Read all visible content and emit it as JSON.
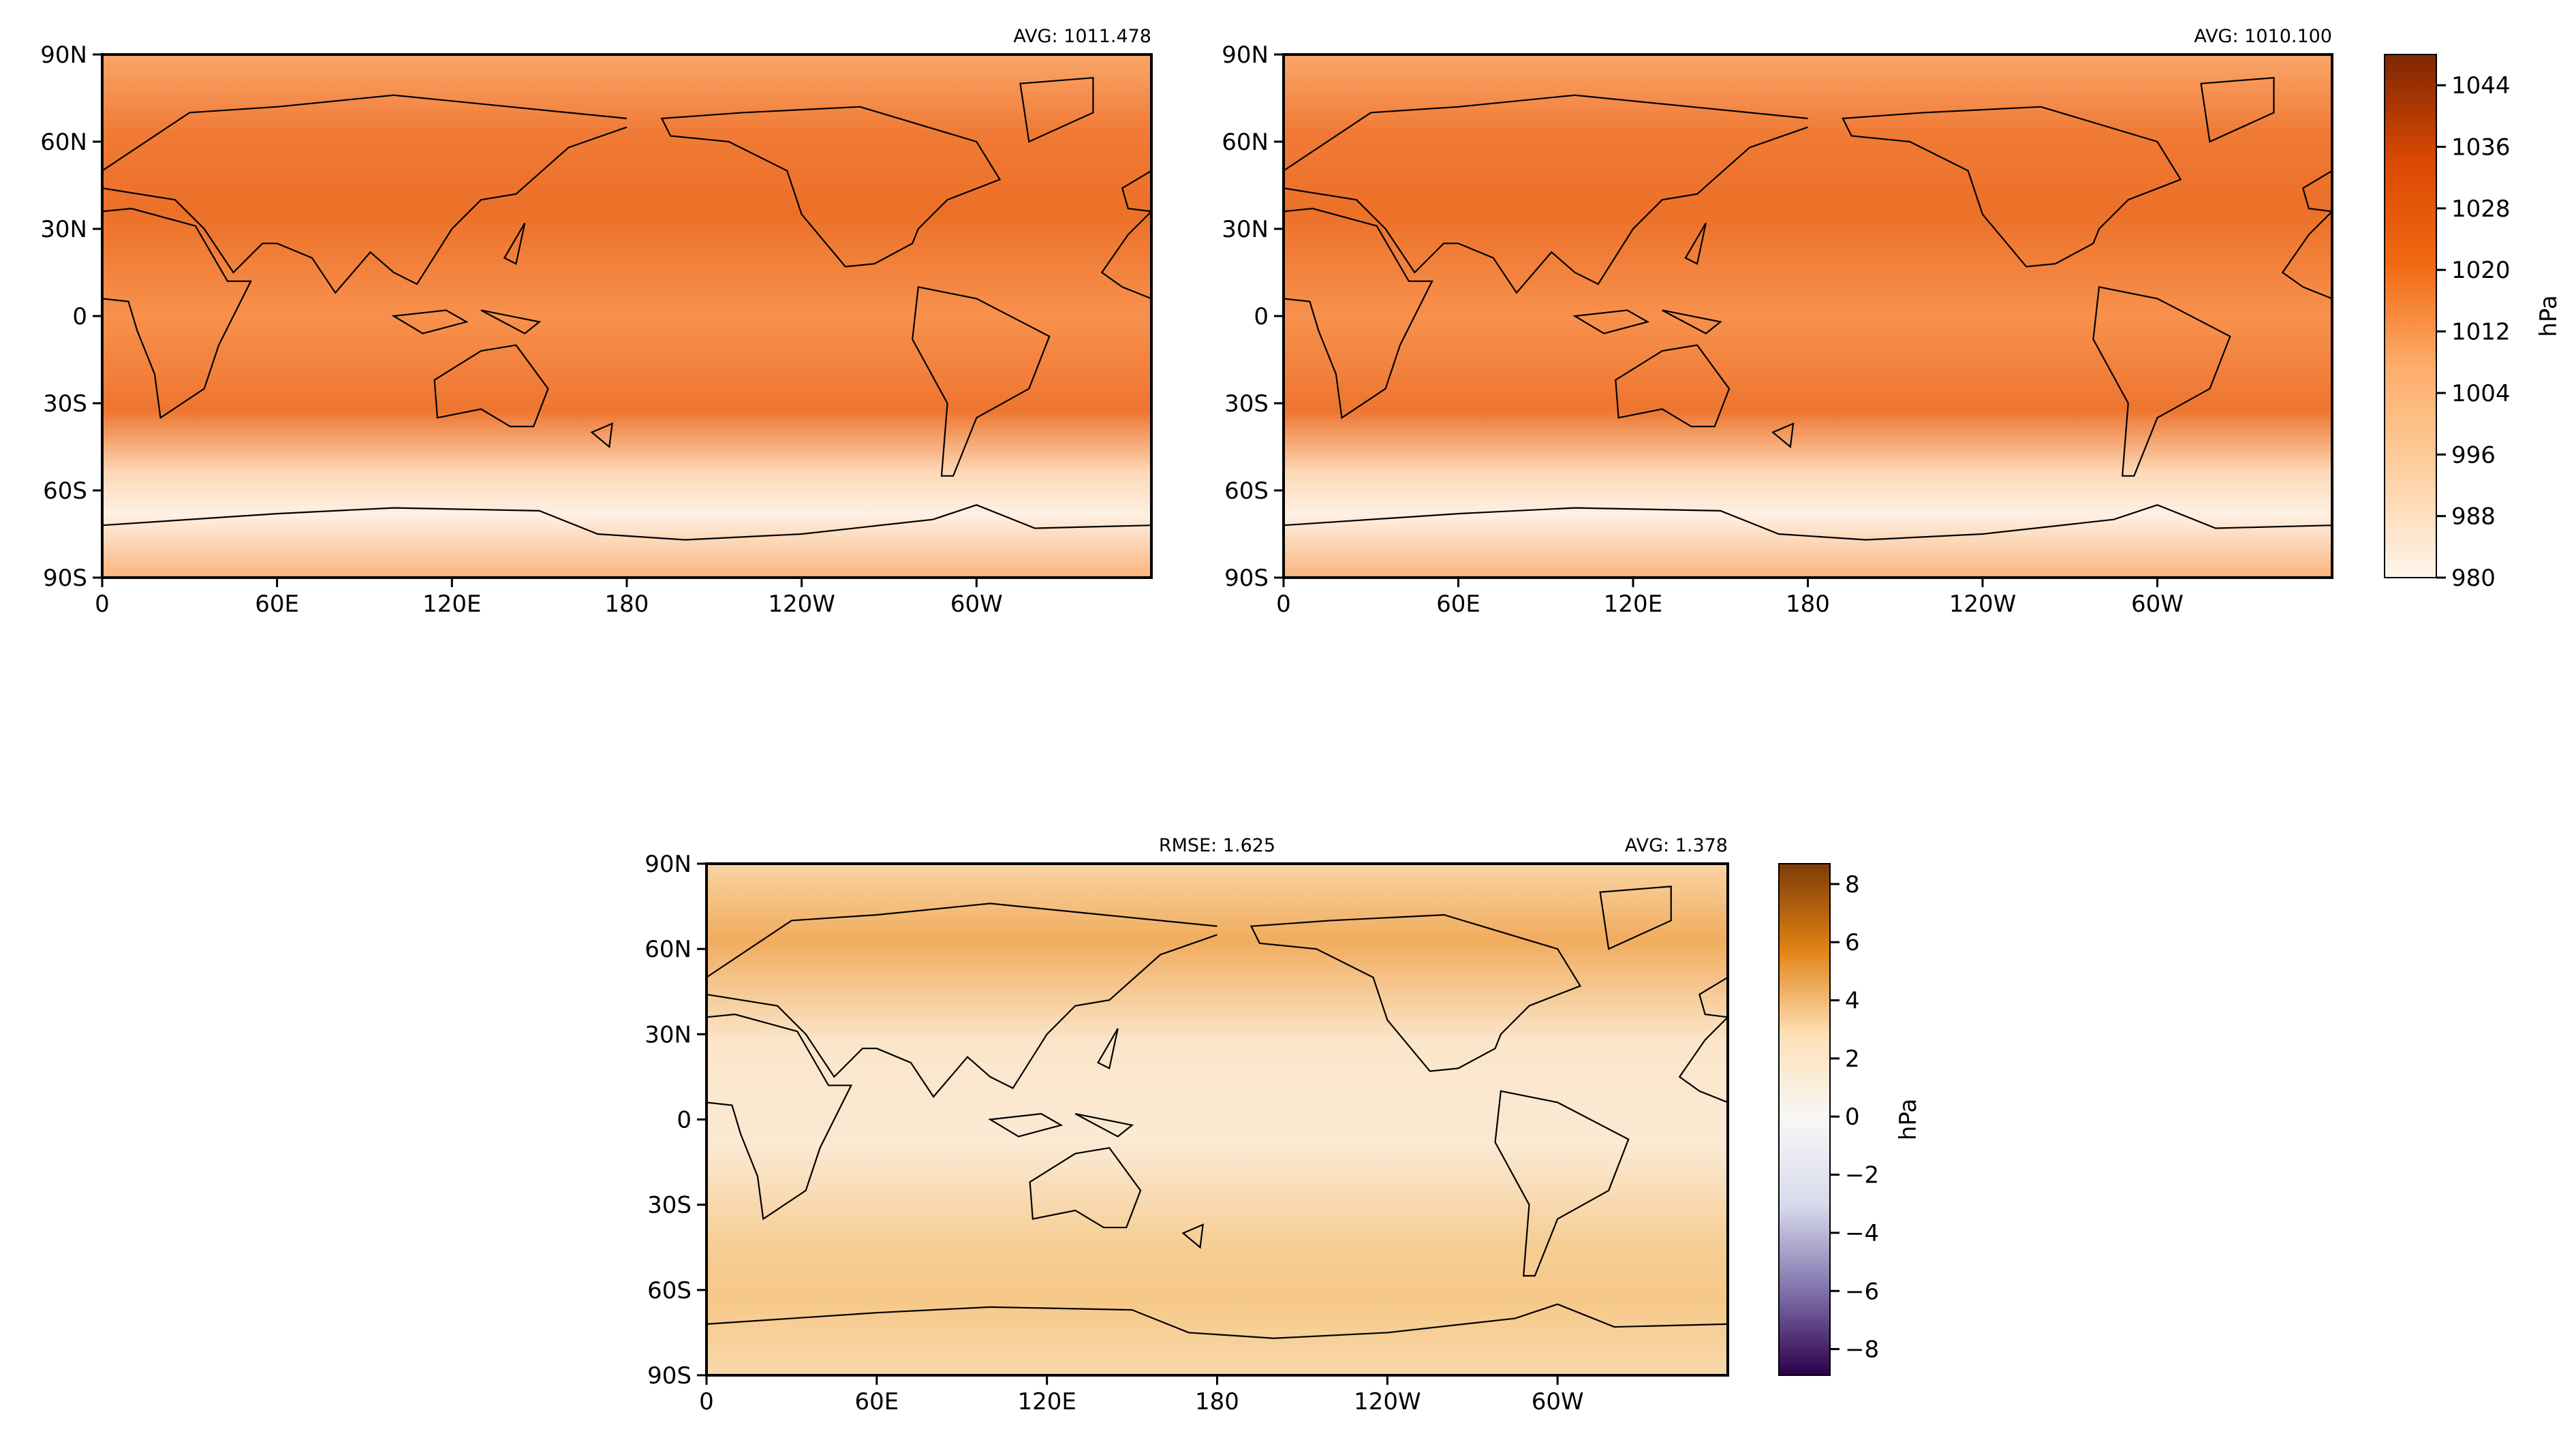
{
  "chart_data": [
    {
      "type": "contour-map",
      "annotations": [
        "AVG: 1011.478"
      ],
      "xlim": [
        0,
        360
      ],
      "ylim": [
        -90,
        90
      ],
      "xticks": [
        0,
        {
          "value": 60,
          "label": "60E"
        },
        {
          "value": 120,
          "label": "120E"
        },
        180,
        {
          "value": 240,
          "label": "120W"
        },
        {
          "value": 300,
          "label": "60W"
        }
      ],
      "yticks": [
        {
          "value": 90,
          "label": "90N"
        },
        {
          "value": 60,
          "label": "60N"
        },
        {
          "value": 30,
          "label": "30N"
        },
        0,
        {
          "value": -30,
          "label": "30S"
        },
        {
          "value": -60,
          "label": "60S"
        },
        {
          "value": -90,
          "label": "90S"
        }
      ]
    },
    {
      "type": "contour-map",
      "annotations": [
        "AVG: 1010.100"
      ],
      "xlim": [
        0,
        360
      ],
      "ylim": [
        -90,
        90
      ],
      "xticks": [
        0,
        {
          "value": 60,
          "label": "60E"
        },
        {
          "value": 120,
          "label": "120E"
        },
        180,
        {
          "value": 240,
          "label": "120W"
        },
        {
          "value": 300,
          "label": "60W"
        }
      ],
      "yticks": [
        {
          "value": 90,
          "label": "90N"
        },
        {
          "value": 60,
          "label": "60N"
        },
        {
          "value": 30,
          "label": "30N"
        },
        0,
        {
          "value": -30,
          "label": "30S"
        },
        {
          "value": -60,
          "label": "60S"
        },
        {
          "value": -90,
          "label": "90S"
        }
      ]
    },
    {
      "type": "colorbar",
      "label": "hPa",
      "ylim": [
        980,
        1048
      ],
      "yticks": [
        980,
        988,
        996,
        1004,
        1012,
        1020,
        1028,
        1036,
        1044
      ],
      "colors": [
        "#fff5eb",
        "#fdd0a2",
        "#fdae6b",
        "#f16913",
        "#d94801",
        "#7f2704"
      ]
    },
    {
      "type": "contour-map",
      "annotations": [
        "RMSE: 1.625",
        "AVG: 1.378"
      ],
      "xlim": [
        0,
        360
      ],
      "ylim": [
        -90,
        90
      ],
      "xticks": [
        0,
        {
          "value": 60,
          "label": "60E"
        },
        {
          "value": 120,
          "label": "120E"
        },
        180,
        {
          "value": 240,
          "label": "120W"
        },
        {
          "value": 300,
          "label": "60W"
        }
      ],
      "yticks": [
        {
          "value": 90,
          "label": "90N"
        },
        {
          "value": 60,
          "label": "60N"
        },
        {
          "value": 30,
          "label": "30N"
        },
        0,
        {
          "value": -30,
          "label": "30S"
        },
        {
          "value": -60,
          "label": "60S"
        },
        {
          "value": -90,
          "label": "90S"
        }
      ]
    },
    {
      "type": "colorbar",
      "label": "hPa",
      "ylim": [
        -8.9,
        8.7
      ],
      "yticks": [
        {
          "value": -8,
          "label": "−8"
        },
        {
          "value": -6,
          "label": "−6"
        },
        {
          "value": -4,
          "label": "−4"
        },
        {
          "value": -2,
          "label": "−2"
        },
        0,
        2,
        4,
        6,
        8
      ],
      "colors": [
        "#2d004b",
        "#8073ac",
        "#d8daeb",
        "#f7f7f7",
        "#fee0b6",
        "#e08214",
        "#7f3b08"
      ]
    }
  ]
}
